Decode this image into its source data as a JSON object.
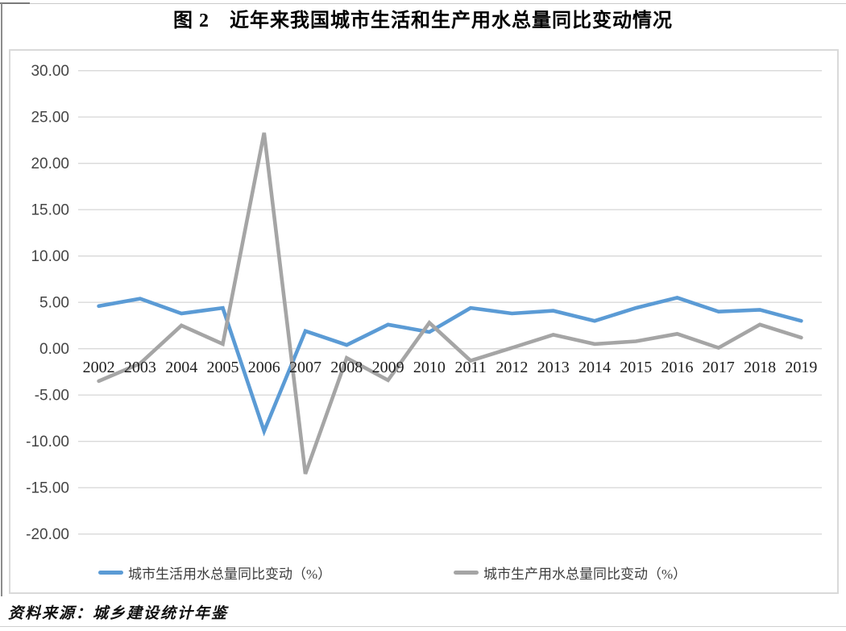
{
  "title": "图 2　近年来我国城市生活和生产用水总量同比变动情况",
  "source_note": "资料来源：城乡建设统计年鉴",
  "chart_data": {
    "type": "line",
    "title": "图 2　近年来我国城市生活和生产用水总量同比变动情况",
    "categories": [
      "2002",
      "2003",
      "2004",
      "2005",
      "2006",
      "2007",
      "2008",
      "2009",
      "2010",
      "2011",
      "2012",
      "2013",
      "2014",
      "2015",
      "2016",
      "2017",
      "2018",
      "2019"
    ],
    "series": [
      {
        "name": "城市生活用水总量同比变动（%）",
        "color": "#5B9BD5",
        "values": [
          4.6,
          5.4,
          3.8,
          4.4,
          -8.9,
          1.9,
          0.4,
          2.6,
          1.8,
          4.4,
          3.8,
          4.1,
          3.0,
          4.4,
          5.5,
          4.0,
          4.2,
          3.0
        ]
      },
      {
        "name": "城市生产用水总量同比变动（%）",
        "color": "#A5A5A5",
        "values": [
          -3.5,
          -1.6,
          2.5,
          0.5,
          23.3,
          -13.5,
          -1.0,
          -3.4,
          2.8,
          -1.3,
          0.1,
          1.5,
          0.5,
          0.8,
          1.6,
          0.1,
          2.6,
          1.2
        ]
      }
    ],
    "xlabel": "",
    "ylabel": "",
    "ylim": [
      -20,
      30
    ],
    "ytick_step": 5,
    "y_ticks": [
      "30.00",
      "25.00",
      "20.00",
      "15.00",
      "10.00",
      "5.00",
      "0.00",
      "-5.00",
      "-10.00",
      "-15.00",
      "-20.00"
    ],
    "grid": true,
    "gridline_color": "#d9d9d9",
    "legend_position": "bottom"
  }
}
